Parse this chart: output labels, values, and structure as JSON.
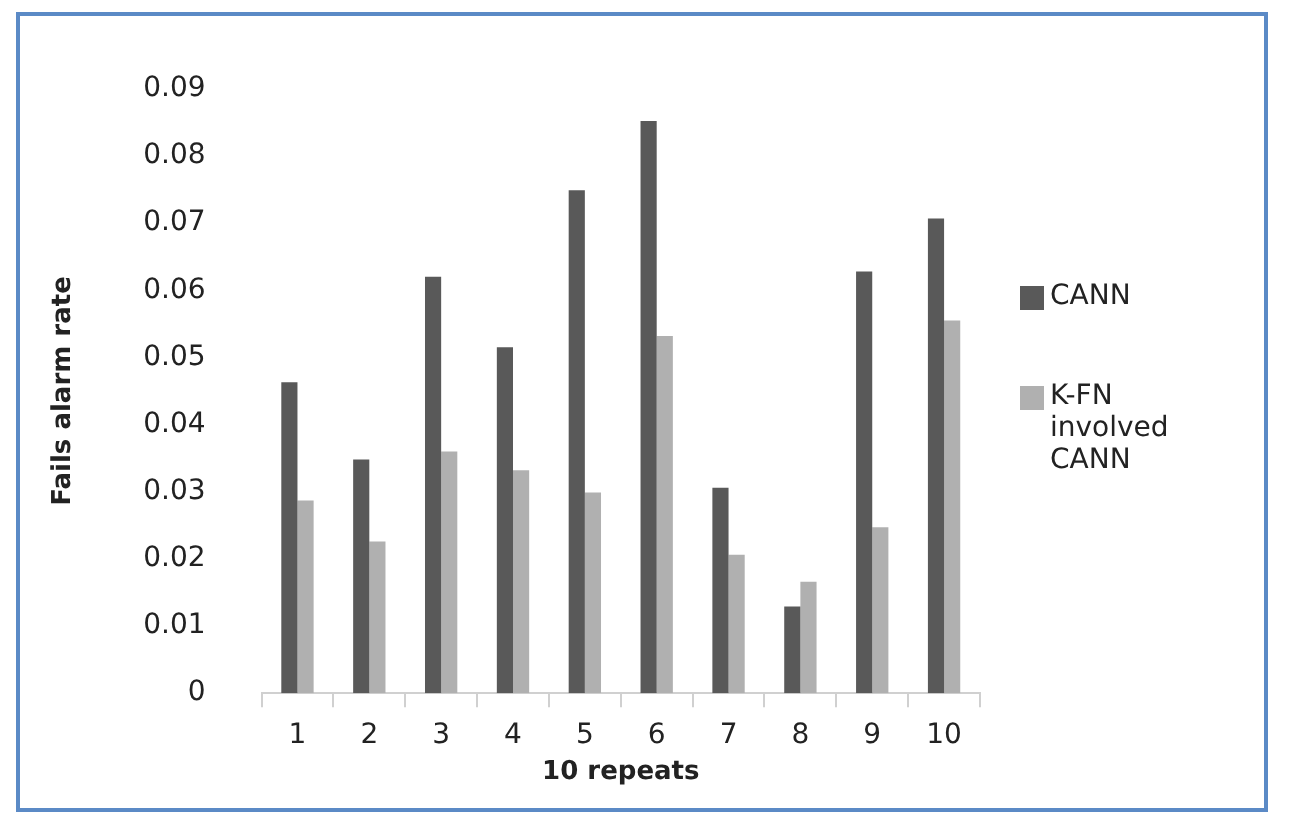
{
  "chart_data": {
    "type": "bar",
    "xlabel": "10 repeats",
    "ylabel": "Fails alarm rate",
    "categories": [
      "1",
      "2",
      "3",
      "4",
      "5",
      "6",
      "7",
      "8",
      "9",
      "10"
    ],
    "series": [
      {
        "name": "CANN",
        "color": "#595959",
        "values": [
          0.0463,
          0.0348,
          0.062,
          0.0515,
          0.0749,
          0.0852,
          0.0306,
          0.0129,
          0.0628,
          0.0707
        ]
      },
      {
        "name": "K-FN involved CANN",
        "color": "#b0b0b0",
        "values": [
          0.0287,
          0.0226,
          0.036,
          0.0332,
          0.0299,
          0.0532,
          0.0206,
          0.0166,
          0.0247,
          0.0555
        ]
      }
    ],
    "ylim": [
      0,
      0.09
    ],
    "yticks": [
      0,
      0.01,
      0.02,
      0.03,
      0.04,
      0.05,
      0.06,
      0.07,
      0.08,
      0.09
    ],
    "grid": false,
    "legend": "right"
  }
}
